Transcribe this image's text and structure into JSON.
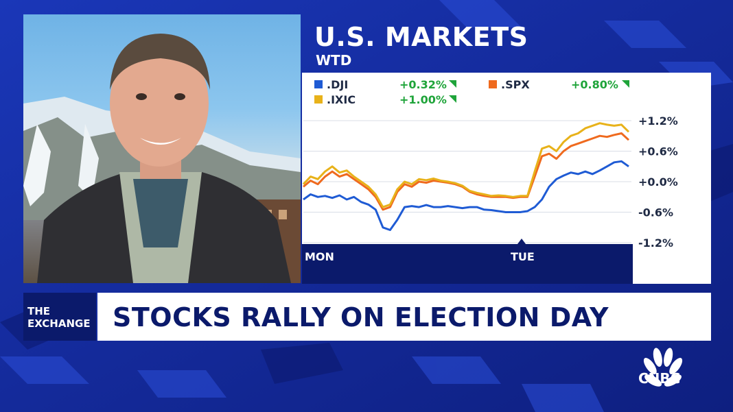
{
  "panel": {
    "title": "U.S. MARKETS",
    "subtitle": "WTD"
  },
  "legend": [
    {
      "name": ".DJI",
      "change": "+0.32%",
      "color": "#1f5bd4"
    },
    {
      "name": ".SPX",
      "change": "+0.80%",
      "color": "#ef6a1e"
    },
    {
      "name": ".IXIC",
      "change": "+1.00%",
      "color": "#e8b21a"
    }
  ],
  "lower_third": {
    "tag_line1": "THE",
    "tag_line2": "EXCHANGE",
    "headline": "STOCKS RALLY ON ELECTION DAY"
  },
  "logo": {
    "text": "CNBC",
    "icon": "peacock-icon"
  },
  "chart_data": {
    "type": "line",
    "x_labels": [
      "MON",
      "TUE"
    ],
    "ylim": [
      -1.2,
      1.2
    ],
    "y_ticks": [
      "+1.2%",
      "+0.6%",
      "+0.0%",
      "-0.6%",
      "-1.2%"
    ],
    "y_tick_values": [
      1.2,
      0.6,
      0.0,
      -0.6,
      -1.2
    ],
    "grid": true,
    "series": [
      {
        "name": ".DJI",
        "color": "#1f5bd4",
        "values": [
          -0.35,
          -0.25,
          -0.3,
          -0.28,
          -0.32,
          -0.27,
          -0.35,
          -0.3,
          -0.4,
          -0.45,
          -0.55,
          -0.9,
          -0.95,
          -0.75,
          -0.5,
          -0.48,
          -0.5,
          -0.46,
          -0.5,
          -0.5,
          -0.48,
          -0.5,
          -0.52,
          -0.5,
          -0.5,
          -0.55,
          -0.56,
          -0.58,
          -0.6,
          -0.6,
          -0.6,
          -0.58,
          -0.5,
          -0.35,
          -0.1,
          0.05,
          0.12,
          0.18,
          0.15,
          0.2,
          0.15,
          0.22,
          0.3,
          0.38,
          0.4,
          0.3
        ]
      },
      {
        "name": ".SPX",
        "color": "#ef6a1e",
        "values": [
          -0.1,
          0.02,
          -0.05,
          0.1,
          0.2,
          0.1,
          0.15,
          0.05,
          -0.05,
          -0.15,
          -0.3,
          -0.55,
          -0.5,
          -0.2,
          -0.05,
          -0.1,
          0.0,
          -0.02,
          0.02,
          0.0,
          -0.02,
          -0.05,
          -0.1,
          -0.2,
          -0.25,
          -0.28,
          -0.3,
          -0.3,
          -0.3,
          -0.32,
          -0.3,
          -0.3,
          0.1,
          0.5,
          0.55,
          0.45,
          0.6,
          0.7,
          0.75,
          0.8,
          0.85,
          0.9,
          0.88,
          0.92,
          0.95,
          0.82
        ]
      },
      {
        "name": ".IXIC",
        "color": "#e8b21a",
        "values": [
          -0.05,
          0.1,
          0.05,
          0.2,
          0.3,
          0.18,
          0.22,
          0.1,
          0.0,
          -0.1,
          -0.25,
          -0.5,
          -0.45,
          -0.15,
          0.0,
          -0.05,
          0.05,
          0.03,
          0.06,
          0.02,
          0.0,
          -0.03,
          -0.08,
          -0.18,
          -0.22,
          -0.25,
          -0.28,
          -0.27,
          -0.28,
          -0.3,
          -0.28,
          -0.28,
          0.2,
          0.65,
          0.7,
          0.6,
          0.78,
          0.9,
          0.95,
          1.05,
          1.1,
          1.15,
          1.12,
          1.1,
          1.12,
          0.98
        ]
      }
    ]
  }
}
